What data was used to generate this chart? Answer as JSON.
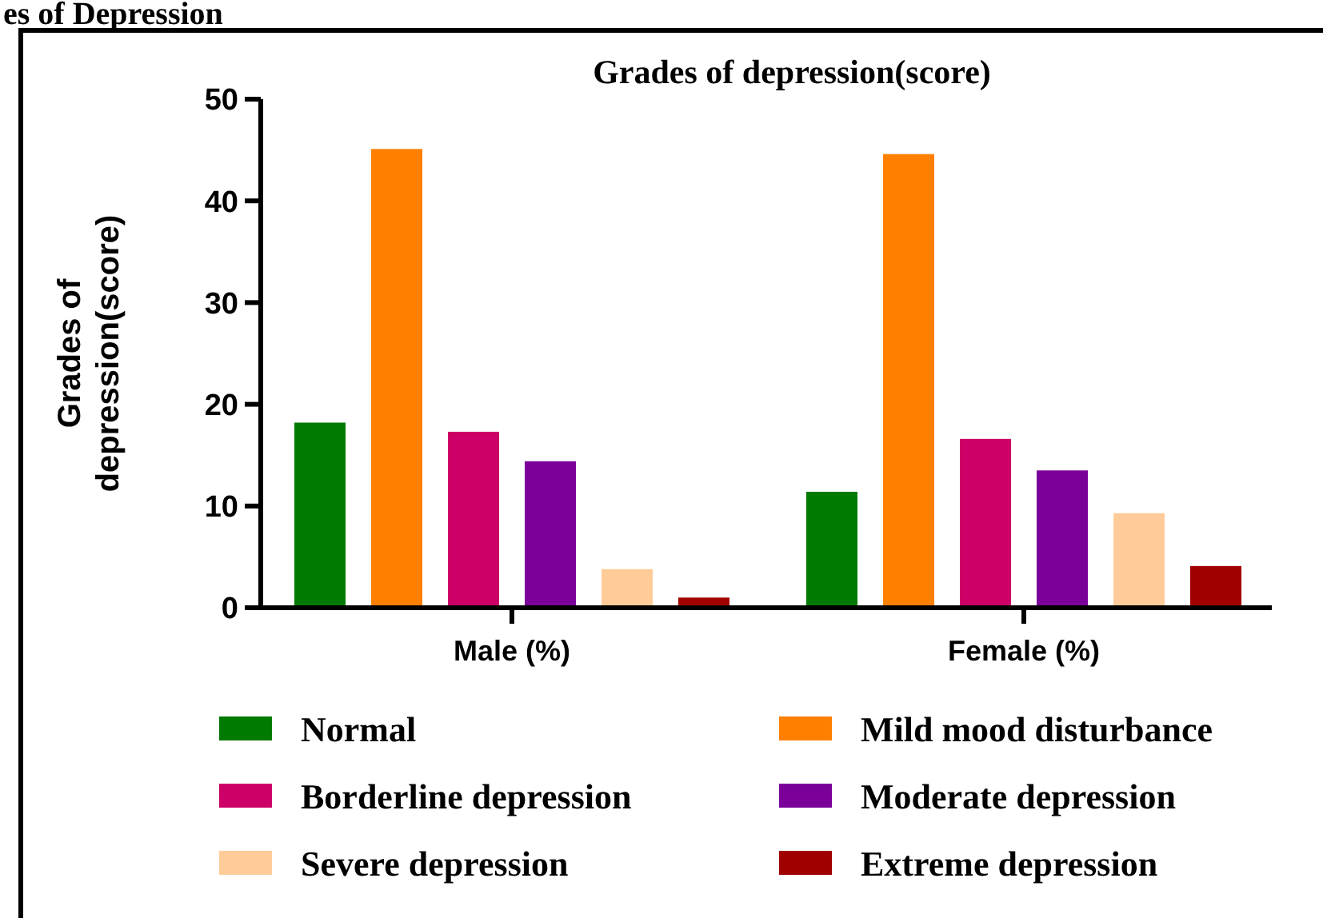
{
  "chart_data": {
    "type": "bar",
    "title": "Grades of depression(score)",
    "ylabel": "Grades of depression(score)",
    "annotations": [
      "es of Depression"
    ],
    "categories": [
      "Male (%)",
      "Female (%)"
    ],
    "series": [
      {
        "name": "Normal",
        "color": "#007a00",
        "values": [
          18.2,
          11.4
        ]
      },
      {
        "name": "Mild mood disturbance",
        "color": "#ff8000",
        "values": [
          45.1,
          44.6
        ]
      },
      {
        "name": "Borderline depression",
        "color": "#cc0066",
        "values": [
          17.3,
          16.6
        ]
      },
      {
        "name": "Moderate depression",
        "color": "#7a0099",
        "values": [
          14.4,
          13.5
        ]
      },
      {
        "name": "Severe depression",
        "color": "#ffcc99",
        "values": [
          3.8,
          9.3
        ]
      },
      {
        "name": "Extreme depression",
        "color": "#a00000",
        "values": [
          1.0,
          4.1
        ]
      }
    ],
    "ylim": [
      0,
      50
    ],
    "yticks": [
      0,
      10,
      20,
      30,
      40,
      50
    ],
    "grid": false,
    "legend": "bottom"
  }
}
